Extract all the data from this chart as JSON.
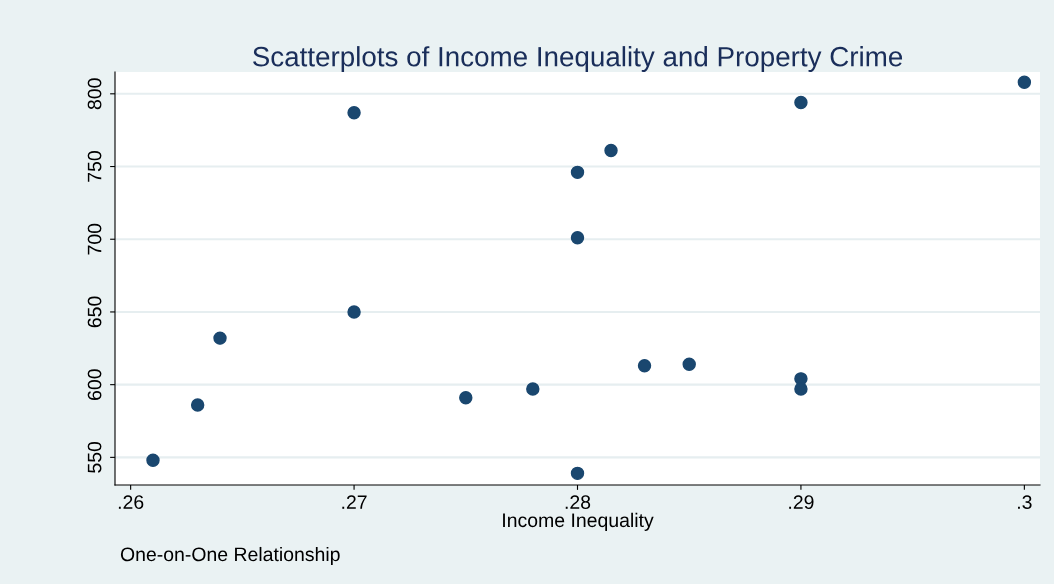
{
  "chart_data": {
    "type": "scatter",
    "title": "Scatterplots of Income Inequality and Property Crime",
    "xlabel": "Income Inequality",
    "annotations": [
      "One-on-One Relationship"
    ],
    "x": [
      0.261,
      0.263,
      0.264,
      0.27,
      0.27,
      0.275,
      0.278,
      0.28,
      0.28,
      0.28,
      0.2815,
      0.283,
      0.285,
      0.29,
      0.29,
      0.29,
      0.3
    ],
    "series": [
      {
        "color": "#1a476f",
        "values": [
          548,
          586,
          632,
          787,
          650,
          591,
          597,
          539,
          701,
          746,
          761,
          613,
          614,
          794,
          604,
          597,
          808
        ]
      }
    ],
    "marker": "circle",
    "xlim": [
      0.2593,
      0.3007
    ],
    "ylim": [
      531,
      815
    ],
    "xticks": [
      {
        "value": 0.26,
        "label": ".26"
      },
      {
        "value": 0.27,
        "label": ".27"
      },
      {
        "value": 0.28,
        "label": ".28"
      },
      {
        "value": 0.29,
        "label": ".29"
      },
      {
        "value": 0.3,
        "label": ".3"
      }
    ],
    "yticks": [
      550,
      600,
      650,
      700,
      750,
      800
    ],
    "grid": "y",
    "legend": false
  }
}
